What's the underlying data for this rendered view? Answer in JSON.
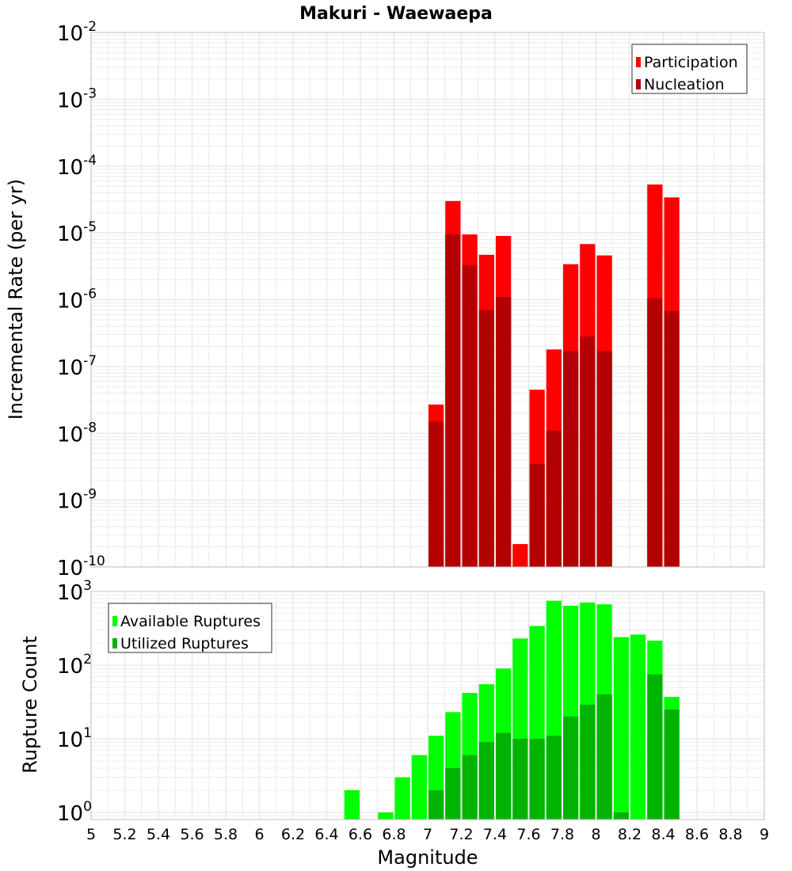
{
  "title": "Makuri - Waewaepa",
  "colors": {
    "participation": "#ff0000",
    "nucleation": "#b30000",
    "available": "#00ff00",
    "utilized": "#00b300",
    "grid": "#e6e6e6",
    "frame": "#c0c0c0"
  },
  "chart_data": [
    {
      "type": "bar",
      "ylabel": "Incremental Rate (per yr)",
      "yscale": "log",
      "ylim": [
        1e-10,
        0.01
      ],
      "y_tick_labels": [
        {
          "base": "10",
          "exp": "-10",
          "value": 1e-10
        },
        {
          "base": "10",
          "exp": "-9",
          "value": 1e-09
        },
        {
          "base": "10",
          "exp": "-8",
          "value": 1e-08
        },
        {
          "base": "10",
          "exp": "-7",
          "value": 1e-07
        },
        {
          "base": "10",
          "exp": "-6",
          "value": 1e-06
        },
        {
          "base": "10",
          "exp": "-5",
          "value": 1e-05
        },
        {
          "base": "10",
          "exp": "-4",
          "value": 0.0001
        },
        {
          "base": "10",
          "exp": "-3",
          "value": 0.001
        },
        {
          "base": "10",
          "exp": "-2",
          "value": 0.01
        }
      ],
      "legend": {
        "position": "top-right"
      },
      "series": [
        {
          "name": "Participation",
          "color": "#ff0000",
          "points": [
            [
              7.05,
              2.7e-08
            ],
            [
              7.15,
              3e-05
            ],
            [
              7.25,
              9.5e-06
            ],
            [
              7.35,
              4.7e-06
            ],
            [
              7.45,
              9e-06
            ],
            [
              7.55,
              2.2e-10
            ],
            [
              7.65,
              4.5e-08
            ],
            [
              7.75,
              1.8e-07
            ],
            [
              7.85,
              3.4e-06
            ],
            [
              7.95,
              6.8e-06
            ],
            [
              8.05,
              4.6e-06
            ],
            [
              8.35,
              5.3e-05
            ],
            [
              8.45,
              3.4e-05
            ]
          ]
        },
        {
          "name": "Nucleation",
          "color": "#b30000",
          "points": [
            [
              7.05,
              1.5e-08
            ],
            [
              7.15,
              9.5e-06
            ],
            [
              7.25,
              3.3e-06
            ],
            [
              7.35,
              7e-07
            ],
            [
              7.45,
              1.1e-06
            ],
            [
              7.65,
              3.5e-09
            ],
            [
              7.75,
              1.1e-08
            ],
            [
              7.85,
              1.7e-07
            ],
            [
              7.95,
              2.8e-07
            ],
            [
              8.05,
              1.7e-07
            ],
            [
              8.35,
              1.05e-06
            ],
            [
              8.45,
              6.8e-07
            ]
          ]
        }
      ]
    },
    {
      "type": "bar",
      "xlabel": "Magnitude",
      "ylabel": "Rupture Count",
      "yscale": "log",
      "xlim": [
        5,
        9
      ],
      "ylim": [
        0.8,
        1000
      ],
      "x_tick_labels": [
        "5",
        "5.2",
        "5.4",
        "5.6",
        "5.8",
        "6",
        "6.2",
        "6.4",
        "6.6",
        "6.8",
        "7",
        "7.2",
        "7.4",
        "7.6",
        "7.8",
        "8",
        "8.2",
        "8.4",
        "8.6",
        "8.8",
        "9"
      ],
      "y_tick_labels": [
        {
          "base": "10",
          "exp": "0",
          "value": 1
        },
        {
          "base": "10",
          "exp": "1",
          "value": 10
        },
        {
          "base": "10",
          "exp": "2",
          "value": 100
        },
        {
          "base": "10",
          "exp": "3",
          "value": 1000
        }
      ],
      "legend": {
        "position": "top-left"
      },
      "series": [
        {
          "name": "Available Ruptures",
          "color": "#00ff00",
          "points": [
            [
              6.55,
              2
            ],
            [
              6.75,
              1
            ],
            [
              6.85,
              3
            ],
            [
              6.95,
              6
            ],
            [
              7.05,
              11
            ],
            [
              7.15,
              23
            ],
            [
              7.25,
              42
            ],
            [
              7.35,
              55
            ],
            [
              7.45,
              90
            ],
            [
              7.55,
              230
            ],
            [
              7.65,
              340
            ],
            [
              7.75,
              750
            ],
            [
              7.85,
              640
            ],
            [
              7.95,
              710
            ],
            [
              8.05,
              670
            ],
            [
              8.15,
              240
            ],
            [
              8.25,
              260
            ],
            [
              8.35,
              215
            ],
            [
              8.45,
              37
            ]
          ]
        },
        {
          "name": "Utilized Ruptures",
          "color": "#00b300",
          "points": [
            [
              7.05,
              2
            ],
            [
              7.15,
              4
            ],
            [
              7.25,
              6
            ],
            [
              7.35,
              9
            ],
            [
              7.45,
              12
            ],
            [
              7.55,
              10
            ],
            [
              7.65,
              10
            ],
            [
              7.75,
              11
            ],
            [
              7.85,
              20
            ],
            [
              7.95,
              29
            ],
            [
              8.05,
              40
            ],
            [
              8.15,
              1
            ],
            [
              8.35,
              75
            ],
            [
              8.45,
              25
            ]
          ]
        }
      ]
    }
  ]
}
